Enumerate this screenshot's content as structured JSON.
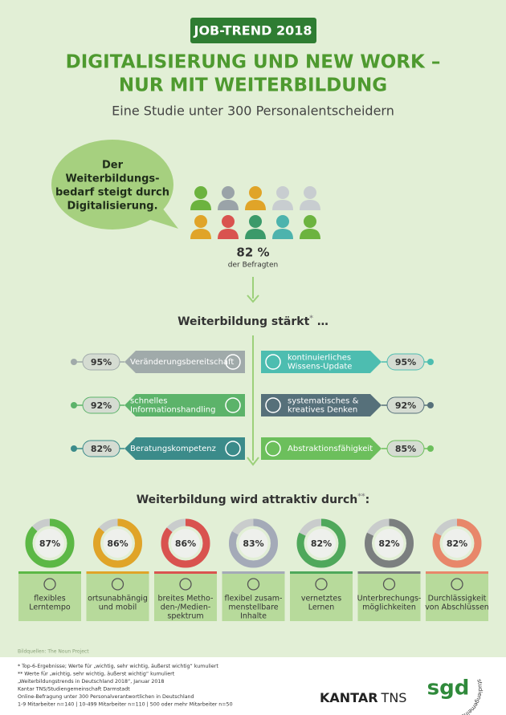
{
  "header": {
    "badge": "JOB-TREND 2018",
    "title_lines": [
      "DIGITALISIERUNG UND NEW WORK –",
      "NUR MIT WEITERBILDUNG"
    ],
    "subtitle": "Eine Studie unter 300 Personalentscheidern"
  },
  "bubble": {
    "lines": [
      "Der",
      "Weiterbildungs-",
      "bedarf steigt durch",
      "Digitalisierung."
    ]
  },
  "share": {
    "value": "82 %",
    "caption": "der Befragten"
  },
  "strengths": {
    "title": "Weiterbildung stärkt",
    "note_mark": "*",
    "tail": " …",
    "left": [
      {
        "label": [
          "Veränderungsbereitschaft"
        ],
        "value": "95%"
      },
      {
        "label": [
          "schnelles",
          "Informationshandling"
        ],
        "value": "92%"
      },
      {
        "label": [
          "Beratungskompetenz"
        ],
        "value": "82%"
      }
    ],
    "right": [
      {
        "label": [
          "kontinuierliches",
          "Wissens-Update"
        ],
        "value": "95%"
      },
      {
        "label": [
          "systematisches &",
          "kreatives Denken"
        ],
        "value": "92%"
      },
      {
        "label": [
          "Abstraktionsfähigkeit"
        ],
        "value": "85%"
      }
    ]
  },
  "attractive": {
    "title": "Weiterbildung wird attraktiv durch",
    "note_mark": "**",
    "tail": ":",
    "values": [
      87,
      86,
      86,
      83,
      82,
      82,
      82
    ],
    "value_labels": [
      "87%",
      "86%",
      "86%",
      "83%",
      "82%",
      "82%",
      "82%"
    ],
    "labels": [
      [
        "flexibles",
        "Lerntempo"
      ],
      [
        "ortsunabhängig",
        "und mobil"
      ],
      [
        "breites Metho-",
        "den-/Medien-",
        "spektrum"
      ],
      [
        "flexibel zusam-",
        "menstellbare",
        "Inhalte"
      ],
      [
        "vernetztes",
        "Lernen"
      ],
      [
        "Unterbrechungs-",
        "möglichkeiten"
      ],
      [
        "Durchlässigkeit",
        "von Abschlüssen"
      ]
    ]
  },
  "credits": "Bildquellen: The Noun Project",
  "footnotes": [
    "* Top-6-Ergebnisse; Werte für „wichtig, sehr wichtig, äußerst wichtig“ kumuliert",
    "** Werte für „wichtig, sehr wichtig, äußerst wichtig“ kumuliert",
    "„Weiterbildungstrends in Deutschland 2018“, Januar 2018",
    "Kantar TNS/Studiengemeinschaft Darmstadt",
    "Online-Befragung unter 300 Personalverantwortlichen in Deutschland",
    "1-9 Mitarbeiter n=140 | 10-499 Mitarbeiter n=110 | 500 oder mehr Mitarbeiter n=50"
  ],
  "logos": {
    "kantar": "KANTAR",
    "tns": "TNS",
    "sgd": "sgd",
    "sgd_ring": "studiengemeinschaft"
  }
}
